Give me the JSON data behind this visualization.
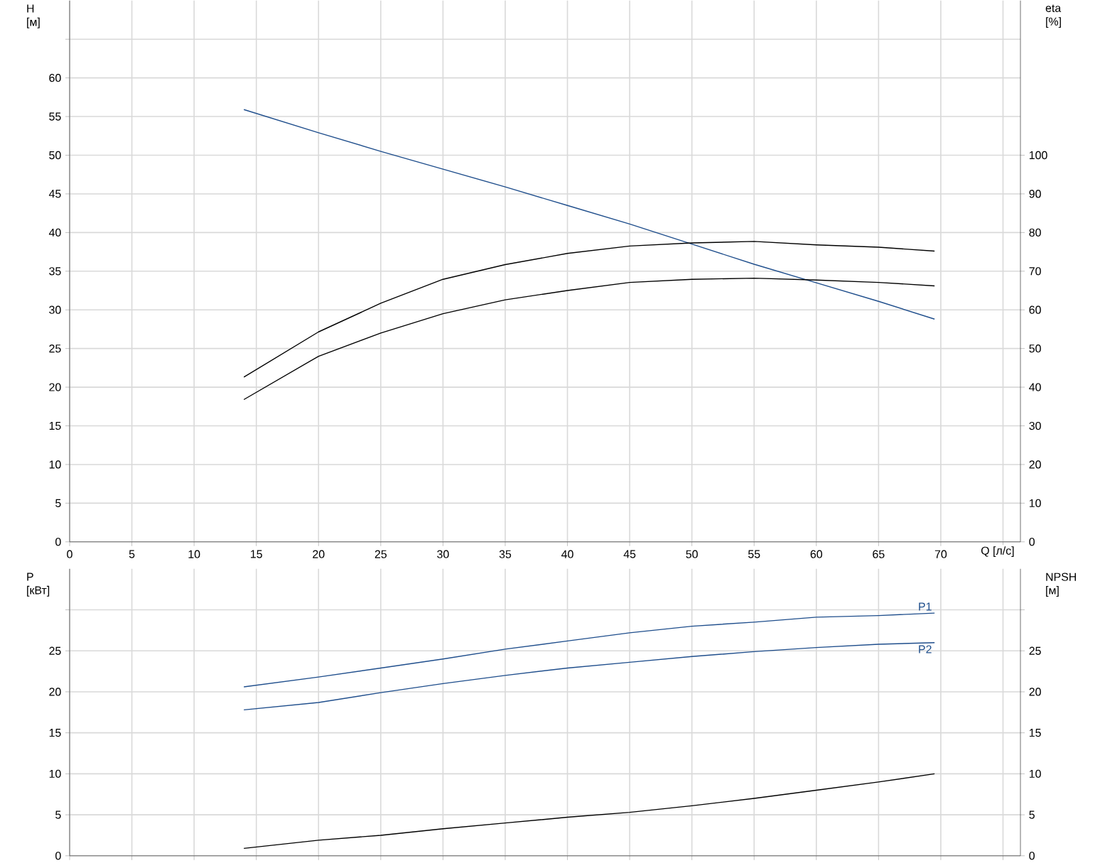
{
  "chart_data": [
    {
      "type": "line",
      "xlabel": "Q [л/с]",
      "ylabel": "H [м]",
      "y2label": "eta [%]",
      "x": [
        14,
        20,
        25,
        30,
        35,
        40,
        45,
        50,
        55,
        60,
        65,
        69.5
      ],
      "series": [
        {
          "color": "#1f4e8c",
          "values": [
            55.9,
            52.9,
            50.5,
            48.2,
            45.9,
            43.5,
            41.1,
            38.5,
            35.9,
            33.5,
            31.1,
            28.8
          ]
        },
        {
          "color": "#000000",
          "axis": "y2",
          "values": [
            42.6,
            54.3,
            61.7,
            67.9,
            71.7,
            74.6,
            76.5,
            77.3,
            77.7,
            76.8,
            76.2,
            75.2
          ]
        },
        {
          "color": "#000000",
          "axis": "y2",
          "values": [
            36.8,
            48,
            54,
            59,
            62.6,
            65,
            67.1,
            67.9,
            68.2,
            67.7,
            67.1,
            66.2
          ]
        }
      ],
      "xlim": [
        0,
        76.4
      ],
      "xticks": [
        0,
        5,
        10,
        15,
        20,
        25,
        30,
        35,
        40,
        45,
        50,
        55,
        60,
        65,
        70,
        {
          "value": 75,
          "label": null
        }
      ],
      "ylim": [
        0,
        70
      ],
      "yticks": [
        0,
        5,
        10,
        15,
        20,
        25,
        30,
        35,
        40,
        45,
        50,
        55,
        60,
        {
          "value": 65,
          "label": null
        }
      ],
      "y2lim": [
        0,
        140
      ],
      "y2ticks": [
        0,
        10,
        20,
        30,
        40,
        50,
        60,
        70,
        80,
        90,
        100
      ],
      "grid": true,
      "marker": "none",
      "line_style": "solid"
    },
    {
      "type": "line",
      "ylabel": "P [кВт]",
      "y2label": "NPSH [м]",
      "x": [
        14,
        20,
        25,
        30,
        35,
        40,
        45,
        50,
        55,
        60,
        65,
        69.5
      ],
      "series": [
        {
          "name": "P1",
          "color": "#1f4e8c",
          "values": [
            20.6,
            21.8,
            22.9,
            24.0,
            25.2,
            26.2,
            27.2,
            28.0,
            28.5,
            29.1,
            29.3,
            29.6
          ]
        },
        {
          "name": "P2",
          "color": "#1f4e8c",
          "values": [
            17.8,
            18.7,
            19.9,
            21.0,
            22.0,
            22.9,
            23.6,
            24.3,
            24.9,
            25.4,
            25.8,
            26.0
          ]
        },
        {
          "color": "#000000",
          "axis": "y2",
          "values": [
            0.9,
            1.9,
            2.5,
            3.3,
            4.0,
            4.7,
            5.3,
            6.1,
            7.0,
            8.0,
            9.0,
            10.0
          ]
        }
      ],
      "xlim": [
        0,
        76.4
      ],
      "xticks": [
        0,
        5,
        10,
        15,
        20,
        25,
        30,
        35,
        40,
        45,
        50,
        55,
        60,
        65,
        70,
        75
      ],
      "ylim": [
        0,
        35
      ],
      "yticks": [
        0,
        5,
        10,
        15,
        20,
        25,
        {
          "value": 30,
          "label": null
        }
      ],
      "y2lim": [
        0,
        35
      ],
      "y2ticks": [
        0,
        5,
        10,
        15,
        20,
        25,
        {
          "value": 30,
          "label": null
        }
      ],
      "tick_labels": "y",
      "grid": true,
      "marker": "none",
      "line_style": "solid"
    }
  ]
}
